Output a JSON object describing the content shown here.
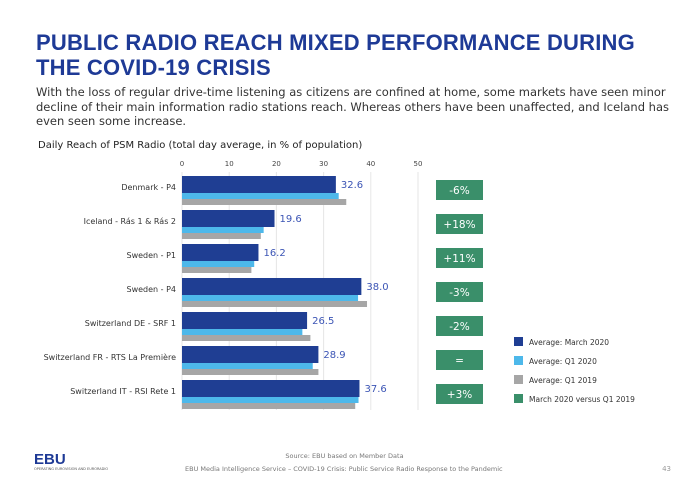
{
  "title": "PUBLIC RADIO REACH MIXED PERFORMANCE DURING THE COVID-19 CRISIS",
  "intro": "With the loss of regular drive-time listening as citizens are confined at home, some markets have seen minor decline of their main information radio stations reach. Whereas others have been unaffected, and Iceland has even seen some increase.",
  "chart_data": {
    "type": "bar",
    "orientation": "horizontal",
    "title": "Daily Reach of PSM Radio (total day average, in % of population)",
    "categories": [
      "Denmark - P4",
      "Iceland - Rás 1 & Rás 2",
      "Sweden - P1",
      "Sweden - P4",
      "Switzerland DE - SRF 1",
      "Switzerland FR - RTS La Première",
      "Switzerland IT - RSI Rete 1"
    ],
    "xlim": [
      0,
      50
    ],
    "xticks": [
      0,
      10,
      20,
      30,
      40,
      50
    ],
    "grid": true,
    "legend_position": "bottom-right",
    "series": [
      {
        "name": "Average: March 2020",
        "color": "#1f3e93",
        "values": [
          32.6,
          19.6,
          16.2,
          38.0,
          26.5,
          28.9,
          37.6
        ],
        "data_labels": [
          "32.6",
          "19.6",
          "16.2",
          "38.0",
          "26.5",
          "28.9",
          "37.6"
        ]
      },
      {
        "name": "Average: Q1 2020",
        "color": "#4db8ea",
        "values": [
          33.2,
          17.3,
          15.3,
          37.3,
          25.5,
          27.7,
          37.4
        ]
      },
      {
        "name": "Average: Q1 2019",
        "color": "#a6a6a6",
        "values": [
          34.8,
          16.7,
          14.7,
          39.2,
          27.2,
          28.9,
          36.7
        ]
      }
    ],
    "change": {
      "name": "March 2020 versus Q1 2019",
      "color": "#3a8f6a",
      "values": [
        "-6%",
        "+18%",
        "+11%",
        "-3%",
        "-2%",
        "=",
        "+3%"
      ]
    },
    "label_color": "#3c55b5"
  },
  "footer": {
    "source": "Source: EBU based on Member Data",
    "service": "EBU Media Intelligence Service – COVID-19 Crisis: Public Service Radio Response to the Pandemic",
    "page": "43",
    "logo": "EBU",
    "logo_tagline": "OPERATING EUROVISION AND EURORADIO"
  }
}
